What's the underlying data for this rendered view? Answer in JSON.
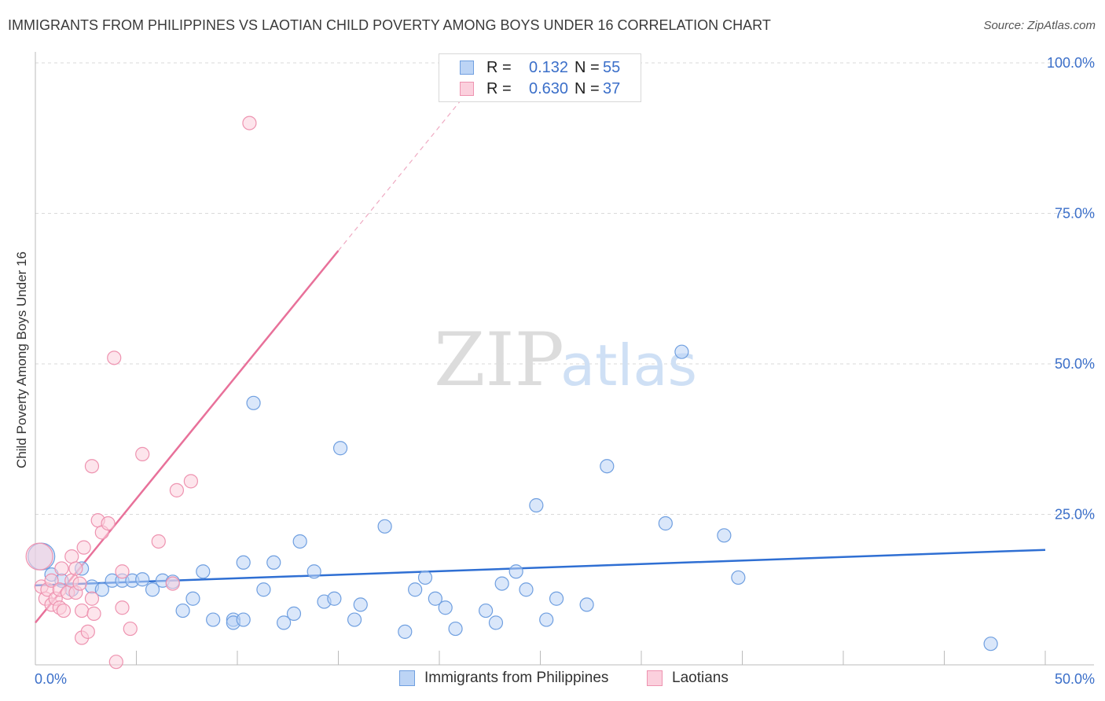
{
  "title": "IMMIGRANTS FROM PHILIPPINES VS LAOTIAN CHILD POVERTY AMONG BOYS UNDER 16 CORRELATION CHART",
  "source": "Source: ZipAtlas.com",
  "watermark": {
    "zip": "ZIP",
    "atlas": "atlas"
  },
  "legend": {
    "rows": [
      {
        "r_label": "R =",
        "r_value": "0.132",
        "n_label": "N =",
        "n_value": "55",
        "color": "#a9c8f0",
        "border": "#6f9fe0"
      },
      {
        "r_label": "R =",
        "r_value": "0.630",
        "n_label": "N =",
        "n_value": "37",
        "color": "#f9c6d6",
        "border": "#ee93b0"
      }
    ]
  },
  "bottom_legend": [
    {
      "label": "Immigrants from Philippines",
      "color": "#bcd4f5",
      "border": "#6f9fe0"
    },
    {
      "label": "Laotians",
      "color": "#fbd0dd",
      "border": "#ee93b0"
    }
  ],
  "chart_data": {
    "type": "scatter",
    "title": "IMMIGRANTS FROM PHILIPPINES VS LAOTIAN CHILD POVERTY AMONG BOYS UNDER 16 CORRELATION CHART",
    "xlabel": "",
    "ylabel": "Child Poverty Among Boys Under 16",
    "xlim": [
      0,
      50
    ],
    "ylim": [
      0,
      100
    ],
    "x_tick_labels": [
      {
        "value": 0,
        "label": "0.0%"
      },
      {
        "value": 50,
        "label": "50.0%"
      }
    ],
    "y_tick_labels": [
      {
        "value": 25,
        "label": "25.0%"
      },
      {
        "value": 50,
        "label": "50.0%"
      },
      {
        "value": 75,
        "label": "75.0%"
      },
      {
        "value": 100,
        "label": "100.0%"
      }
    ],
    "grid": true,
    "series": [
      {
        "name": "Immigrants from Philippines",
        "color": "#6f9fe0",
        "fill": "#bcd4f5",
        "trend": {
          "x": [
            0,
            50
          ],
          "y": [
            13.2,
            19.1
          ],
          "style": "solid"
        },
        "points": [
          {
            "x": 0.3,
            "y": 18.0,
            "big": true
          },
          {
            "x": 0.8,
            "y": 15.0
          },
          {
            "x": 1.3,
            "y": 14.0
          },
          {
            "x": 1.8,
            "y": 12.5
          },
          {
            "x": 2.3,
            "y": 16.0
          },
          {
            "x": 2.8,
            "y": 13.0
          },
          {
            "x": 3.3,
            "y": 12.5
          },
          {
            "x": 3.8,
            "y": 14.0
          },
          {
            "x": 4.3,
            "y": 14.0
          },
          {
            "x": 4.8,
            "y": 14.0
          },
          {
            "x": 5.3,
            "y": 14.2
          },
          {
            "x": 5.8,
            "y": 12.5
          },
          {
            "x": 6.3,
            "y": 14.0
          },
          {
            "x": 6.8,
            "y": 13.8
          },
          {
            "x": 7.3,
            "y": 9.0
          },
          {
            "x": 7.8,
            "y": 11.0
          },
          {
            "x": 8.3,
            "y": 15.5
          },
          {
            "x": 8.8,
            "y": 7.5
          },
          {
            "x": 9.8,
            "y": 7.5
          },
          {
            "x": 9.8,
            "y": 7.0
          },
          {
            "x": 10.3,
            "y": 17.0
          },
          {
            "x": 10.3,
            "y": 7.5
          },
          {
            "x": 10.8,
            "y": 43.5
          },
          {
            "x": 11.3,
            "y": 12.5
          },
          {
            "x": 11.8,
            "y": 17.0
          },
          {
            "x": 12.3,
            "y": 7.0
          },
          {
            "x": 12.8,
            "y": 8.5
          },
          {
            "x": 13.1,
            "y": 20.5
          },
          {
            "x": 13.8,
            "y": 15.5
          },
          {
            "x": 14.3,
            "y": 10.5
          },
          {
            "x": 14.8,
            "y": 11.0
          },
          {
            "x": 15.1,
            "y": 36.0
          },
          {
            "x": 15.8,
            "y": 7.5
          },
          {
            "x": 16.1,
            "y": 10.0
          },
          {
            "x": 17.3,
            "y": 23.0
          },
          {
            "x": 18.3,
            "y": 5.5
          },
          {
            "x": 18.8,
            "y": 12.5
          },
          {
            "x": 19.3,
            "y": 14.5
          },
          {
            "x": 19.8,
            "y": 11.0
          },
          {
            "x": 20.3,
            "y": 9.5
          },
          {
            "x": 20.8,
            "y": 6.0
          },
          {
            "x": 22.3,
            "y": 9.0
          },
          {
            "x": 22.8,
            "y": 7.0
          },
          {
            "x": 23.1,
            "y": 13.5
          },
          {
            "x": 23.8,
            "y": 15.5
          },
          {
            "x": 24.3,
            "y": 12.5
          },
          {
            "x": 24.8,
            "y": 26.5
          },
          {
            "x": 25.3,
            "y": 7.5
          },
          {
            "x": 25.8,
            "y": 11.0
          },
          {
            "x": 27.3,
            "y": 10.0
          },
          {
            "x": 28.3,
            "y": 33.0
          },
          {
            "x": 31.2,
            "y": 23.5
          },
          {
            "x": 32.0,
            "y": 52.0
          },
          {
            "x": 34.1,
            "y": 21.5
          },
          {
            "x": 34.8,
            "y": 14.5
          },
          {
            "x": 47.3,
            "y": 3.5
          }
        ]
      },
      {
        "name": "Laotians",
        "color": "#ee93b0",
        "fill": "#fbd0dd",
        "trend": {
          "x": [
            0,
            15
          ],
          "y": [
            7.0,
            68.8
          ],
          "style": "solid",
          "extend_dashed_to_y": 100
        },
        "points": [
          {
            "x": 0.2,
            "y": 18.0,
            "big": true
          },
          {
            "x": 0.3,
            "y": 13.0
          },
          {
            "x": 0.5,
            "y": 11.0
          },
          {
            "x": 0.6,
            "y": 12.5
          },
          {
            "x": 0.8,
            "y": 14.0
          },
          {
            "x": 0.8,
            "y": 10.0
          },
          {
            "x": 1.0,
            "y": 11.0
          },
          {
            "x": 1.2,
            "y": 9.5
          },
          {
            "x": 1.2,
            "y": 12.5
          },
          {
            "x": 1.3,
            "y": 16.0
          },
          {
            "x": 1.4,
            "y": 9.0
          },
          {
            "x": 1.6,
            "y": 12.0
          },
          {
            "x": 1.8,
            "y": 14.0
          },
          {
            "x": 1.8,
            "y": 18.0
          },
          {
            "x": 2.0,
            "y": 16.0
          },
          {
            "x": 2.0,
            "y": 12.0
          },
          {
            "x": 2.2,
            "y": 13.5
          },
          {
            "x": 2.3,
            "y": 9.0
          },
          {
            "x": 2.3,
            "y": 4.5
          },
          {
            "x": 2.4,
            "y": 19.5
          },
          {
            "x": 2.6,
            "y": 5.5
          },
          {
            "x": 2.8,
            "y": 33.0
          },
          {
            "x": 2.8,
            "y": 11.0
          },
          {
            "x": 2.9,
            "y": 8.5
          },
          {
            "x": 3.1,
            "y": 24.0
          },
          {
            "x": 3.3,
            "y": 22.0
          },
          {
            "x": 3.6,
            "y": 23.5
          },
          {
            "x": 3.9,
            "y": 51.0
          },
          {
            "x": 4.0,
            "y": 0.5
          },
          {
            "x": 4.3,
            "y": 9.5
          },
          {
            "x": 4.3,
            "y": 15.5
          },
          {
            "x": 4.7,
            "y": 6.0
          },
          {
            "x": 5.3,
            "y": 35.0
          },
          {
            "x": 6.1,
            "y": 20.5
          },
          {
            "x": 6.8,
            "y": 13.5
          },
          {
            "x": 7.0,
            "y": 29.0
          },
          {
            "x": 7.7,
            "y": 30.5
          },
          {
            "x": 10.6,
            "y": 90.0
          }
        ]
      }
    ]
  }
}
